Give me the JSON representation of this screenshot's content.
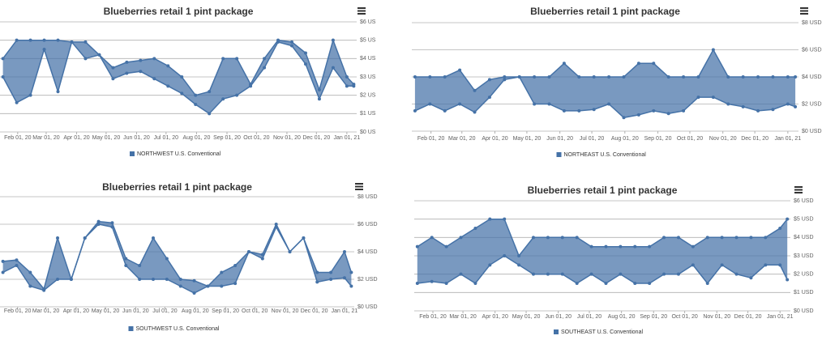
{
  "chart_data": [
    {
      "type": "arearange",
      "title": "Blueberries retail  1 pint package",
      "x": [
        "2020-01-17",
        "2020-01-31",
        "2020-02-14",
        "2020-02-28",
        "2020-03-13",
        "2020-03-27",
        "2020-04-10",
        "2020-04-24",
        "2020-05-08",
        "2020-05-22",
        "2020-06-05",
        "2020-06-19",
        "2020-07-03",
        "2020-07-17",
        "2020-07-31",
        "2020-08-14",
        "2020-08-28",
        "2020-09-11",
        "2020-09-25",
        "2020-10-09",
        "2020-10-23",
        "2020-11-06",
        "2020-11-20",
        "2020-12-04",
        "2020-12-18",
        "2021-01-01",
        "2021-01-08"
      ],
      "series": [
        {
          "name": "NORTHWEST U.S.   Conventional",
          "color": "#4572a7",
          "high": [
            4,
            5,
            5,
            5,
            5,
            4.9,
            4.9,
            4.2,
            3.5,
            3.8,
            3.9,
            4,
            3.6,
            3,
            2,
            2.2,
            4,
            4,
            2.6,
            4,
            5,
            4.9,
            4.3,
            2.3,
            5,
            3,
            2.6
          ],
          "low": [
            3,
            1.6,
            2,
            4.5,
            2.2,
            4.9,
            4,
            4.2,
            2.9,
            3.2,
            3.3,
            2.9,
            2.5,
            2.1,
            1.5,
            1,
            1.8,
            2,
            2.5,
            3.5,
            4.9,
            4.7,
            3.7,
            1.8,
            3.5,
            2.5,
            2.5
          ]
        }
      ],
      "xlim": [
        "2020-01-14",
        "2021-01-11"
      ],
      "xticks": [
        {
          "value": "2020-02-01",
          "label": "Feb 01, 20"
        },
        {
          "value": "2020-03-01",
          "label": "Mar 01, 20"
        },
        {
          "value": "2020-04-01",
          "label": "Apr 01, 20"
        },
        {
          "value": "2020-05-01",
          "label": "May 01, 20"
        },
        {
          "value": "2020-06-01",
          "label": "Jun 01, 20"
        },
        {
          "value": "2020-07-01",
          "label": "Jul 01, 20"
        },
        {
          "value": "2020-08-01",
          "label": "Aug 01, 20"
        },
        {
          "value": "2020-09-01",
          "label": "Sep 01, 20"
        },
        {
          "value": "2020-10-01",
          "label": "Oct 01, 20"
        },
        {
          "value": "2020-11-01",
          "label": "Nov 01, 20"
        },
        {
          "value": "2020-12-01",
          "label": "Dec 01, 20"
        },
        {
          "value": "2021-01-01",
          "label": "Jan 01, 21"
        }
      ],
      "ylim": [
        0,
        6
      ],
      "yticks": [
        {
          "value": 0,
          "label": "$0 US"
        },
        {
          "value": 1,
          "label": "$1 US"
        },
        {
          "value": 2,
          "label": "$2 US"
        },
        {
          "value": 3,
          "label": "$3 US"
        },
        {
          "value": 4,
          "label": "$4 US"
        },
        {
          "value": 5,
          "label": "$5 US"
        },
        {
          "value": 6,
          "label": "$6 US"
        }
      ]
    },
    {
      "type": "arearange",
      "title": "Blueberries retail  1 pint package",
      "x": [
        "2020-01-17",
        "2020-01-31",
        "2020-02-14",
        "2020-02-28",
        "2020-03-13",
        "2020-03-27",
        "2020-04-10",
        "2020-04-24",
        "2020-05-08",
        "2020-05-22",
        "2020-06-05",
        "2020-06-19",
        "2020-07-03",
        "2020-07-17",
        "2020-07-31",
        "2020-08-14",
        "2020-08-28",
        "2020-09-11",
        "2020-09-25",
        "2020-10-09",
        "2020-10-23",
        "2020-11-06",
        "2020-11-20",
        "2020-12-04",
        "2020-12-18",
        "2021-01-01",
        "2021-01-08"
      ],
      "series": [
        {
          "name": "NORTHEAST U.S.   Conventional",
          "color": "#4572a7",
          "high": [
            4,
            4,
            4,
            4.5,
            3,
            3.8,
            4,
            4,
            4,
            4,
            5,
            4,
            4,
            4,
            4,
            5,
            5,
            4,
            4,
            4,
            6,
            4,
            4,
            4,
            4,
            4,
            4
          ],
          "low": [
            1.5,
            2,
            1.5,
            2,
            1.4,
            2.5,
            3.8,
            4,
            2,
            2,
            1.5,
            1.5,
            1.6,
            2,
            1,
            1.2,
            1.5,
            1.3,
            1.5,
            2.5,
            2.5,
            2,
            1.8,
            1.5,
            1.6,
            2,
            1.8
          ]
        }
      ],
      "xlim": [
        "2020-01-14",
        "2021-01-11"
      ],
      "xticks": [
        {
          "value": "2020-02-01",
          "label": "Feb 01, 20"
        },
        {
          "value": "2020-03-01",
          "label": "Mar 01, 20"
        },
        {
          "value": "2020-04-01",
          "label": "Apr 01, 20"
        },
        {
          "value": "2020-05-01",
          "label": "May 01, 20"
        },
        {
          "value": "2020-06-01",
          "label": "Jun 01, 20"
        },
        {
          "value": "2020-07-01",
          "label": "Jul 01, 20"
        },
        {
          "value": "2020-08-01",
          "label": "Aug 01, 20"
        },
        {
          "value": "2020-09-01",
          "label": "Sep 01, 20"
        },
        {
          "value": "2020-10-01",
          "label": "Oct 01, 20"
        },
        {
          "value": "2020-11-01",
          "label": "Nov 01, 20"
        },
        {
          "value": "2020-12-01",
          "label": "Dec 01, 20"
        },
        {
          "value": "2021-01-01",
          "label": "Jan 01, 21"
        }
      ],
      "ylim": [
        0,
        8
      ],
      "yticks": [
        {
          "value": 0,
          "label": "$0 USD"
        },
        {
          "value": 2,
          "label": "$2 USD"
        },
        {
          "value": 4,
          "label": "$4 USD"
        },
        {
          "value": 6,
          "label": "$6 USD"
        },
        {
          "value": 8,
          "label": "$8 USD"
        }
      ]
    },
    {
      "type": "arearange",
      "title": "Blueberries retail  1 pint package",
      "x": [
        "2020-01-17",
        "2020-01-31",
        "2020-02-14",
        "2020-02-28",
        "2020-03-13",
        "2020-03-27",
        "2020-04-10",
        "2020-04-24",
        "2020-05-08",
        "2020-05-22",
        "2020-06-05",
        "2020-06-19",
        "2020-07-03",
        "2020-07-17",
        "2020-07-31",
        "2020-08-14",
        "2020-08-28",
        "2020-09-11",
        "2020-09-25",
        "2020-10-09",
        "2020-10-23",
        "2020-11-06",
        "2020-11-20",
        "2020-12-04",
        "2020-12-18",
        "2021-01-01",
        "2021-01-08"
      ],
      "series": [
        {
          "name": "SOUTHWEST U.S.   Conventional",
          "color": "#4572a7",
          "high": [
            3.3,
            3.4,
            2.5,
            1.3,
            5,
            2,
            5,
            6.2,
            6.1,
            3.5,
            3,
            5,
            3.5,
            2,
            1.9,
            1.5,
            2.5,
            3,
            4,
            3.8,
            6,
            4,
            5,
            2.5,
            2.5,
            4,
            2.5
          ],
          "low": [
            2.5,
            3,
            1.5,
            1.2,
            2,
            2,
            5,
            6,
            5.8,
            3,
            2,
            2,
            2,
            1.5,
            1,
            1.5,
            1.5,
            1.7,
            4,
            3.5,
            5.8,
            4,
            5,
            1.8,
            2,
            2.1,
            1.5
          ]
        }
      ],
      "xlim": [
        "2020-01-14",
        "2021-01-11"
      ],
      "xticks": [
        {
          "value": "2020-02-01",
          "label": "Feb 01, 20"
        },
        {
          "value": "2020-03-01",
          "label": "Mar 01, 20"
        },
        {
          "value": "2020-04-01",
          "label": "Apr 01, 20"
        },
        {
          "value": "2020-05-01",
          "label": "May 01, 20"
        },
        {
          "value": "2020-06-01",
          "label": "Jun 01, 20"
        },
        {
          "value": "2020-07-01",
          "label": "Jul 01, 20"
        },
        {
          "value": "2020-08-01",
          "label": "Aug 01, 20"
        },
        {
          "value": "2020-09-01",
          "label": "Sep 01, 20"
        },
        {
          "value": "2020-10-01",
          "label": "Oct 01, 20"
        },
        {
          "value": "2020-11-01",
          "label": "Nov 01, 20"
        },
        {
          "value": "2020-12-01",
          "label": "Dec 01, 20"
        },
        {
          "value": "2021-01-01",
          "label": "Jan 01, 21"
        }
      ],
      "ylim": [
        0,
        8
      ],
      "yticks": [
        {
          "value": 0,
          "label": "$0 USD"
        },
        {
          "value": 2,
          "label": "$2 USD"
        },
        {
          "value": 4,
          "label": "$4 USD"
        },
        {
          "value": 6,
          "label": "$6 USD"
        },
        {
          "value": 8,
          "label": "$8 USD"
        }
      ]
    },
    {
      "type": "arearange",
      "title": "Blueberries retail  1 pint package",
      "x": [
        "2020-01-17",
        "2020-01-31",
        "2020-02-14",
        "2020-02-28",
        "2020-03-13",
        "2020-03-27",
        "2020-04-10",
        "2020-04-24",
        "2020-05-08",
        "2020-05-22",
        "2020-06-05",
        "2020-06-19",
        "2020-07-03",
        "2020-07-17",
        "2020-07-31",
        "2020-08-14",
        "2020-08-28",
        "2020-09-11",
        "2020-09-25",
        "2020-10-09",
        "2020-10-23",
        "2020-11-06",
        "2020-11-20",
        "2020-12-04",
        "2020-12-18",
        "2021-01-01",
        "2021-01-08"
      ],
      "series": [
        {
          "name": "SOUTHEAST U.S.   Conventional",
          "color": "#4572a7",
          "high": [
            3.5,
            4,
            3.5,
            4,
            4.5,
            5,
            5,
            3,
            4,
            4,
            4,
            4,
            3.5,
            3.5,
            3.5,
            3.5,
            3.5,
            4,
            4,
            3.5,
            4,
            4,
            4,
            4,
            4,
            4.5,
            5
          ],
          "low": [
            1.5,
            1.6,
            1.5,
            2,
            1.5,
            2.5,
            3,
            2.5,
            2,
            2,
            2,
            1.5,
            2,
            1.5,
            2,
            1.5,
            1.5,
            2,
            2,
            2.5,
            1.5,
            2.5,
            2,
            1.8,
            2.5,
            2.5,
            1.7
          ]
        }
      ],
      "xlim": [
        "2020-01-14",
        "2021-01-11"
      ],
      "xticks": [
        {
          "value": "2020-02-01",
          "label": "Feb 01, 20"
        },
        {
          "value": "2020-03-01",
          "label": "Mar 01, 20"
        },
        {
          "value": "2020-04-01",
          "label": "Apr 01, 20"
        },
        {
          "value": "2020-05-01",
          "label": "May 01, 20"
        },
        {
          "value": "2020-06-01",
          "label": "Jun 01, 20"
        },
        {
          "value": "2020-07-01",
          "label": "Jul 01, 20"
        },
        {
          "value": "2020-08-01",
          "label": "Aug 01, 20"
        },
        {
          "value": "2020-09-01",
          "label": "Sep 01, 20"
        },
        {
          "value": "2020-10-01",
          "label": "Oct 01, 20"
        },
        {
          "value": "2020-11-01",
          "label": "Nov 01, 20"
        },
        {
          "value": "2020-12-01",
          "label": "Dec 01, 20"
        },
        {
          "value": "2021-01-01",
          "label": "Jan 01, 21"
        }
      ],
      "ylim": [
        0,
        6
      ],
      "yticks": [
        {
          "value": 0,
          "label": "$0 USD"
        },
        {
          "value": 1,
          "label": "$1 USD"
        },
        {
          "value": 2,
          "label": "$2 USD"
        },
        {
          "value": 3,
          "label": "$3 USD"
        },
        {
          "value": 4,
          "label": "$4 USD"
        },
        {
          "value": 5,
          "label": "$5 USD"
        },
        {
          "value": 6,
          "label": "$6 USD"
        }
      ]
    }
  ]
}
